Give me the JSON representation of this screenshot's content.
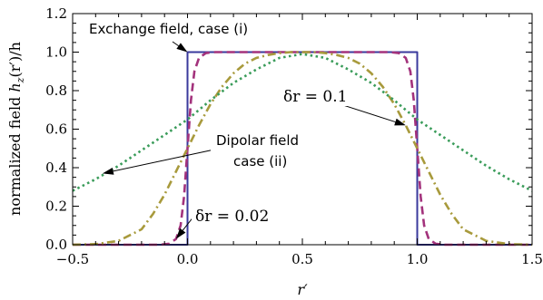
{
  "chart_data": {
    "type": "line",
    "xlabel": "r′",
    "ylabel": "normalized field h_z(r′)/h",
    "ylabel_parts": {
      "pre": "normalized field ",
      "h": "h",
      "sub": "z",
      "post": "(r′)/h"
    },
    "xlim": [
      -0.5,
      1.5
    ],
    "ylim": [
      0.0,
      1.2
    ],
    "x_ticks": [
      -0.5,
      0.0,
      0.5,
      1.0,
      1.5
    ],
    "x_tick_labels": [
      "−0.5",
      "0.0",
      "0.5",
      "1.0",
      "1.5"
    ],
    "y_ticks": [
      0.0,
      0.2,
      0.4,
      0.6,
      0.8,
      1.0,
      1.2
    ],
    "y_tick_labels": [
      "0.0",
      "0.2",
      "0.4",
      "0.6",
      "0.8",
      "1.0",
      "1.2"
    ],
    "grid": false,
    "series": [
      {
        "name": "",
        "style": "solid",
        "color": "#3a3a9c",
        "points": [
          [
            -0.5,
            0.0
          ],
          [
            0.0,
            0.0
          ],
          [
            0.0,
            1.0
          ],
          [
            1.0,
            1.0
          ],
          [
            1.0,
            0.0
          ],
          [
            1.5,
            0.0
          ]
        ]
      },
      {
        "name": "",
        "style": "dashed",
        "color": "#a3327c",
        "points": [
          [
            -0.5,
            0.0
          ],
          [
            -0.12,
            0.0
          ],
          [
            -0.08,
            0.005
          ],
          [
            -0.05,
            0.03
          ],
          [
            -0.03,
            0.1
          ],
          [
            -0.015,
            0.25
          ],
          [
            0.0,
            0.5
          ],
          [
            0.015,
            0.75
          ],
          [
            0.03,
            0.9
          ],
          [
            0.05,
            0.97
          ],
          [
            0.08,
            0.995
          ],
          [
            0.12,
            1.0
          ],
          [
            0.88,
            1.0
          ],
          [
            0.92,
            0.995
          ],
          [
            0.95,
            0.97
          ],
          [
            0.97,
            0.9
          ],
          [
            0.985,
            0.75
          ],
          [
            1.0,
            0.5
          ],
          [
            1.015,
            0.25
          ],
          [
            1.03,
            0.1
          ],
          [
            1.05,
            0.03
          ],
          [
            1.08,
            0.005
          ],
          [
            1.12,
            0.0
          ],
          [
            1.5,
            0.0
          ]
        ]
      },
      {
        "name": "",
        "style": "dash-dot",
        "color": "#a89a3c",
        "points": [
          [
            -0.5,
            0.0
          ],
          [
            -0.4,
            0.003
          ],
          [
            -0.3,
            0.02
          ],
          [
            -0.2,
            0.08
          ],
          [
            -0.15,
            0.16
          ],
          [
            -0.1,
            0.26
          ],
          [
            -0.05,
            0.38
          ],
          [
            0.0,
            0.5
          ],
          [
            0.05,
            0.62
          ],
          [
            0.1,
            0.73
          ],
          [
            0.15,
            0.82
          ],
          [
            0.2,
            0.89
          ],
          [
            0.25,
            0.94
          ],
          [
            0.3,
            0.97
          ],
          [
            0.35,
            0.985
          ],
          [
            0.4,
            0.995
          ],
          [
            0.45,
            1.0
          ],
          [
            0.5,
            1.0
          ],
          [
            0.55,
            1.0
          ],
          [
            0.6,
            0.995
          ],
          [
            0.65,
            0.985
          ],
          [
            0.7,
            0.97
          ],
          [
            0.75,
            0.94
          ],
          [
            0.8,
            0.89
          ],
          [
            0.85,
            0.82
          ],
          [
            0.9,
            0.73
          ],
          [
            0.95,
            0.62
          ],
          [
            1.0,
            0.5
          ],
          [
            1.05,
            0.38
          ],
          [
            1.1,
            0.26
          ],
          [
            1.15,
            0.16
          ],
          [
            1.2,
            0.08
          ],
          [
            1.3,
            0.02
          ],
          [
            1.4,
            0.003
          ],
          [
            1.5,
            0.0
          ]
        ]
      },
      {
        "name": "",
        "style": "dotted",
        "color": "#3a9c5a",
        "points": [
          [
            -0.5,
            0.28
          ],
          [
            -0.4,
            0.34
          ],
          [
            -0.3,
            0.41
          ],
          [
            -0.2,
            0.49
          ],
          [
            -0.1,
            0.57
          ],
          [
            0.0,
            0.65
          ],
          [
            0.1,
            0.75
          ],
          [
            0.2,
            0.84
          ],
          [
            0.3,
            0.91
          ],
          [
            0.4,
            0.97
          ],
          [
            0.5,
            0.99
          ],
          [
            0.6,
            0.97
          ],
          [
            0.7,
            0.91
          ],
          [
            0.8,
            0.84
          ],
          [
            0.9,
            0.75
          ],
          [
            1.0,
            0.65
          ],
          [
            1.1,
            0.57
          ],
          [
            1.2,
            0.49
          ],
          [
            1.3,
            0.41
          ],
          [
            1.4,
            0.34
          ],
          [
            1.5,
            0.28
          ]
        ]
      }
    ],
    "annotations": {
      "exchange": "Exchange field, case (i)",
      "dipolar_line1": "Dipolar field",
      "dipolar_line2": "case (ii)",
      "dr_large": "δr = 0.1",
      "dr_small": "δr = 0.02"
    }
  }
}
